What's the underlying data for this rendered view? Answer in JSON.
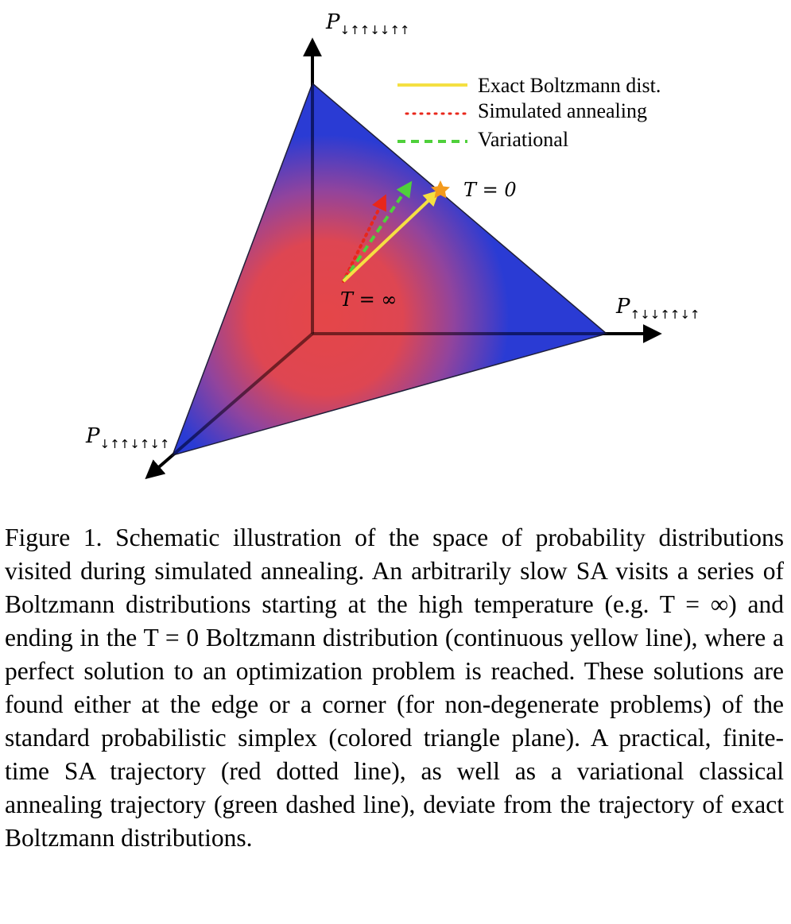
{
  "figure": {
    "axes": {
      "top": {
        "var": "P",
        "sub": "↓↑↑↓↓↑↑"
      },
      "right": {
        "var": "P",
        "sub": "↑↓↓↑↑↓↑"
      },
      "left": {
        "var": "P",
        "sub": "↓↑↑↓↑↓↑"
      }
    },
    "legend": [
      {
        "label": "Exact Boltzmann dist.",
        "color": "#f5e042",
        "style": "solid"
      },
      {
        "label": "Simulated annealing",
        "color": "#e8271b",
        "style": "dotted"
      },
      {
        "label": "Variational",
        "color": "#4fd03b",
        "style": "dashed"
      }
    ],
    "annotations": {
      "t_zero": "T = 0",
      "t_inf": "T = ∞"
    },
    "colors": {
      "corner": "#1c2ed0",
      "center": "#e23a3e",
      "star": "#f39a1d"
    }
  },
  "caption": "Figure 1.  Schematic illustration of the space of probability distributions visited during simulated annealing. An arbitrarily slow SA visits a series of Boltzmann distributions starting at the high temperature (e.g. T = ∞) and ending in the T = 0 Boltzmann distribution (continuous yellow line), where a perfect solution to an optimization problem is reached. These solutions are found either at the edge or a corner (for non-degenerate problems) of the standard probabilistic simplex (colored triangle plane). A practical, finite-time SA trajectory (red dotted line), as well as a variational classical annealing trajectory (green dashed line), deviate from the trajectory of exact Boltzmann distributions."
}
